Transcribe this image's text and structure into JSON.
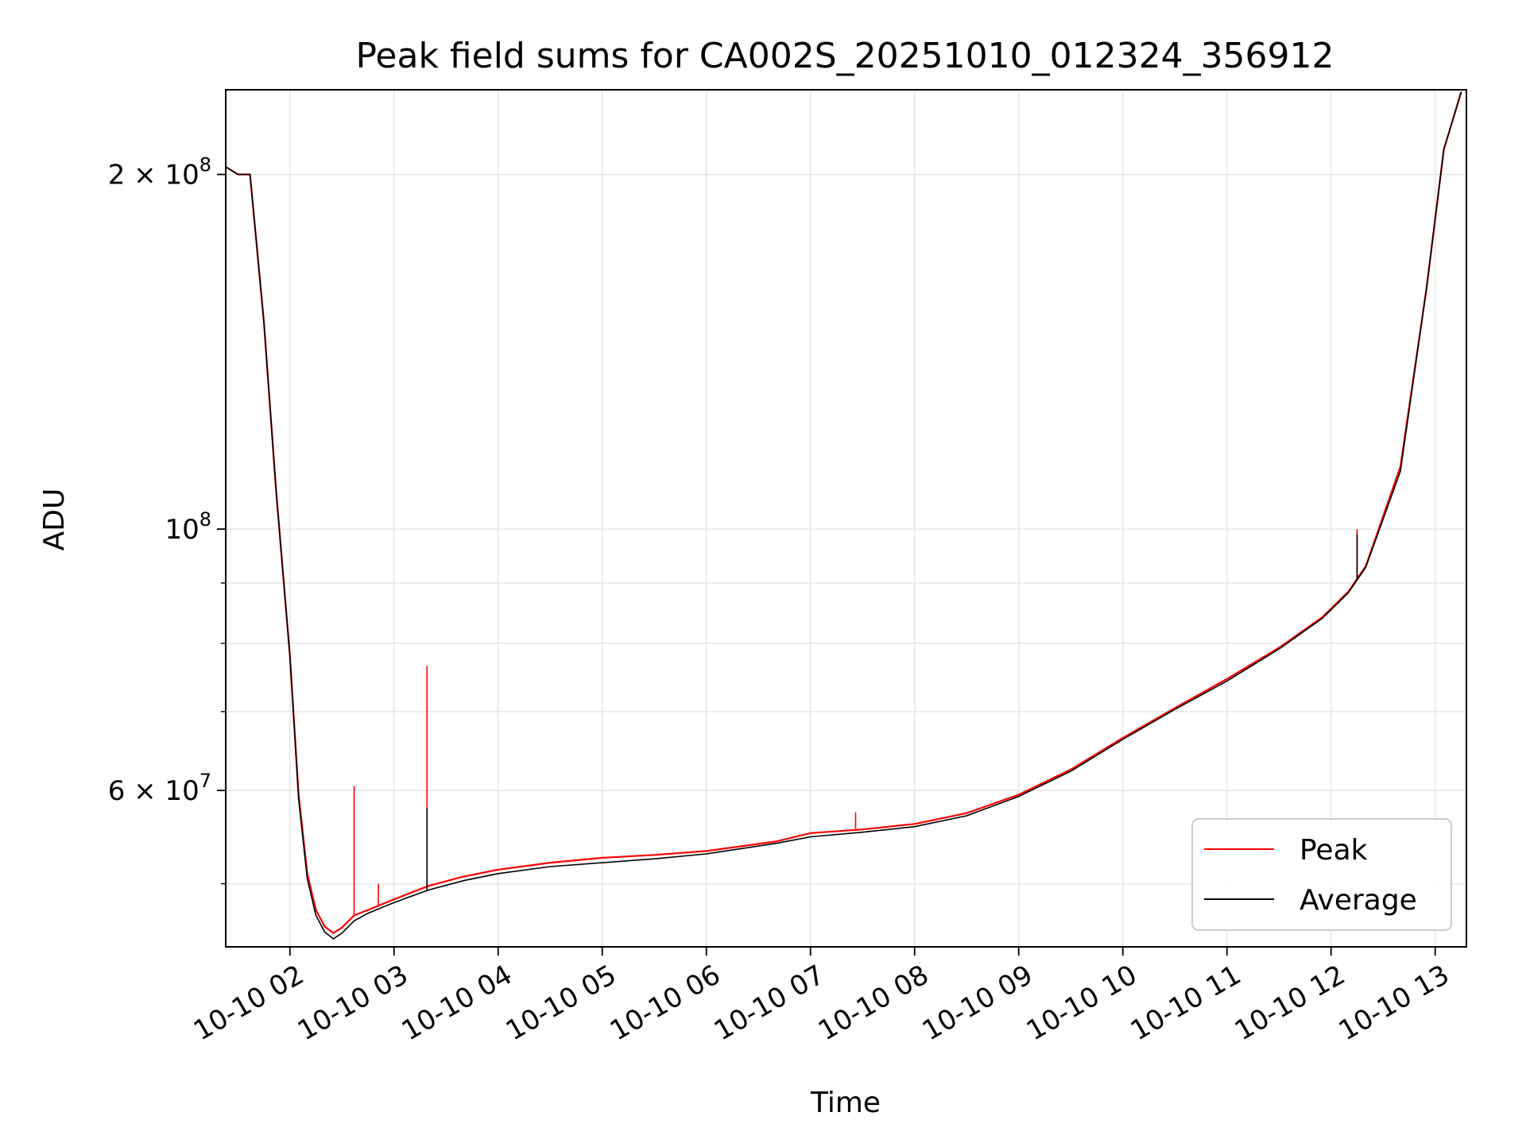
{
  "chart_data": {
    "type": "line",
    "title": "Peak field sums for CA002S_20251010_012324_356912",
    "xlabel": "Time",
    "ylabel": "ADU",
    "x_type": "datetime",
    "y_scale": "log",
    "xlim": [
      "2025-10-10 01:23",
      "2025-10-10 13:18"
    ],
    "ylim": [
      44200000,
      236000000
    ],
    "grid": true,
    "legend": {
      "placement": "lower-right"
    },
    "x_ticks": [
      {
        "value": "2025-10-10 02:00",
        "label": "10-10 02"
      },
      {
        "value": "2025-10-10 03:00",
        "label": "10-10 03"
      },
      {
        "value": "2025-10-10 04:00",
        "label": "10-10 04"
      },
      {
        "value": "2025-10-10 05:00",
        "label": "10-10 05"
      },
      {
        "value": "2025-10-10 06:00",
        "label": "10-10 06"
      },
      {
        "value": "2025-10-10 07:00",
        "label": "10-10 07"
      },
      {
        "value": "2025-10-10 08:00",
        "label": "10-10 08"
      },
      {
        "value": "2025-10-10 09:00",
        "label": "10-10 09"
      },
      {
        "value": "2025-10-10 10:00",
        "label": "10-10 10"
      },
      {
        "value": "2025-10-10 11:00",
        "label": "10-10 11"
      },
      {
        "value": "2025-10-10 12:00",
        "label": "10-10 12"
      },
      {
        "value": "2025-10-10 13:00",
        "label": "10-10 13"
      }
    ],
    "y_major_ticks": [
      {
        "value": 60000000,
        "label_base": "6 × 10",
        "label_exp": "7"
      },
      {
        "value": 100000000,
        "label_base": "10",
        "label_exp": "8"
      },
      {
        "value": 200000000,
        "label_base": "2 × 10",
        "label_exp": "8"
      }
    ],
    "y_minor_ticks": [
      50000000,
      70000000,
      80000000,
      90000000
    ],
    "series": [
      {
        "name": "Peak",
        "color": "#ff0000",
        "x": [
          "2025-10-10 01:23",
          "2025-10-10 01:30",
          "2025-10-10 01:37",
          "2025-10-10 01:45",
          "2025-10-10 01:52",
          "2025-10-10 02:00",
          "2025-10-10 02:05",
          "2025-10-10 02:10",
          "2025-10-10 02:15",
          "2025-10-10 02:20",
          "2025-10-10 02:25",
          "2025-10-10 02:30",
          "2025-10-10 02:37",
          "2025-10-10 02:45",
          "2025-10-10 03:00",
          "2025-10-10 03:20",
          "2025-10-10 03:40",
          "2025-10-10 04:00",
          "2025-10-10 04:30",
          "2025-10-10 05:00",
          "2025-10-10 05:30",
          "2025-10-10 06:00",
          "2025-10-10 06:40",
          "2025-10-10 07:00",
          "2025-10-10 07:30",
          "2025-10-10 08:00",
          "2025-10-10 08:30",
          "2025-10-10 09:00",
          "2025-10-10 09:30",
          "2025-10-10 10:00",
          "2025-10-10 10:30",
          "2025-10-10 11:00",
          "2025-10-10 11:30",
          "2025-10-10 11:55",
          "2025-10-10 12:10",
          "2025-10-10 12:20",
          "2025-10-10 12:40",
          "2025-10-10 12:55",
          "2025-10-10 13:05",
          "2025-10-10 13:15"
        ],
        "y": [
          203000000,
          200000000,
          200000000,
          150000000,
          108000000,
          78000000,
          59500000,
          51000000,
          47500000,
          46000000,
          45400000,
          45900000,
          47000000,
          47500000,
          48500000,
          49800000,
          50700000,
          51400000,
          52100000,
          52600000,
          52900000,
          53300000,
          54300000,
          55200000,
          55600000,
          56200000,
          57400000,
          59500000,
          62500000,
          66500000,
          70500000,
          74600000,
          79300000,
          84200000,
          88500000,
          93000000,
          113000000,
          160000000,
          210000000,
          235000000
        ]
      },
      {
        "name": "Average",
        "color": "#000000",
        "x": [
          "2025-10-10 01:23",
          "2025-10-10 01:30",
          "2025-10-10 01:37",
          "2025-10-10 01:45",
          "2025-10-10 01:52",
          "2025-10-10 02:00",
          "2025-10-10 02:05",
          "2025-10-10 02:10",
          "2025-10-10 02:15",
          "2025-10-10 02:20",
          "2025-10-10 02:25",
          "2025-10-10 02:30",
          "2025-10-10 02:37",
          "2025-10-10 02:45",
          "2025-10-10 03:00",
          "2025-10-10 03:20",
          "2025-10-10 03:40",
          "2025-10-10 04:00",
          "2025-10-10 04:30",
          "2025-10-10 05:00",
          "2025-10-10 05:30",
          "2025-10-10 06:00",
          "2025-10-10 06:40",
          "2025-10-10 07:00",
          "2025-10-10 07:30",
          "2025-10-10 08:00",
          "2025-10-10 08:30",
          "2025-10-10 09:00",
          "2025-10-10 09:30",
          "2025-10-10 10:00",
          "2025-10-10 10:30",
          "2025-10-10 11:00",
          "2025-10-10 11:30",
          "2025-10-10 11:55",
          "2025-10-10 12:10",
          "2025-10-10 12:20",
          "2025-10-10 12:40",
          "2025-10-10 12:55",
          "2025-10-10 13:05",
          "2025-10-10 13:15"
        ],
        "y": [
          203000000,
          200000000,
          200000000,
          150000000,
          108000000,
          78000000,
          59000000,
          50500000,
          47000000,
          45500000,
          44900000,
          45400000,
          46500000,
          47200000,
          48200000,
          49400000,
          50300000,
          51000000,
          51700000,
          52100000,
          52500000,
          53000000,
          54100000,
          54800000,
          55300000,
          55900000,
          57100000,
          59300000,
          62300000,
          66300000,
          70300000,
          74300000,
          79100000,
          84000000,
          88300000,
          92800000,
          112000000,
          160000000,
          210000000,
          235000000
        ]
      }
    ],
    "spikes": [
      {
        "series": "Peak",
        "x": "2025-10-10 02:37",
        "y": 60500000
      },
      {
        "series": "Peak",
        "x": "2025-10-10 02:51",
        "y": 50000000
      },
      {
        "series": "Peak",
        "x": "2025-10-10 03:19",
        "y": 76500000
      },
      {
        "series": "Average",
        "x": "2025-10-10 03:19",
        "y": 58000000
      },
      {
        "series": "Peak",
        "x": "2025-10-10 07:26",
        "y": 57500000
      },
      {
        "series": "Peak",
        "x": "2025-10-10 12:15",
        "y": 100000000
      },
      {
        "series": "Average",
        "x": "2025-10-10 12:15",
        "y": 99000000
      }
    ]
  }
}
